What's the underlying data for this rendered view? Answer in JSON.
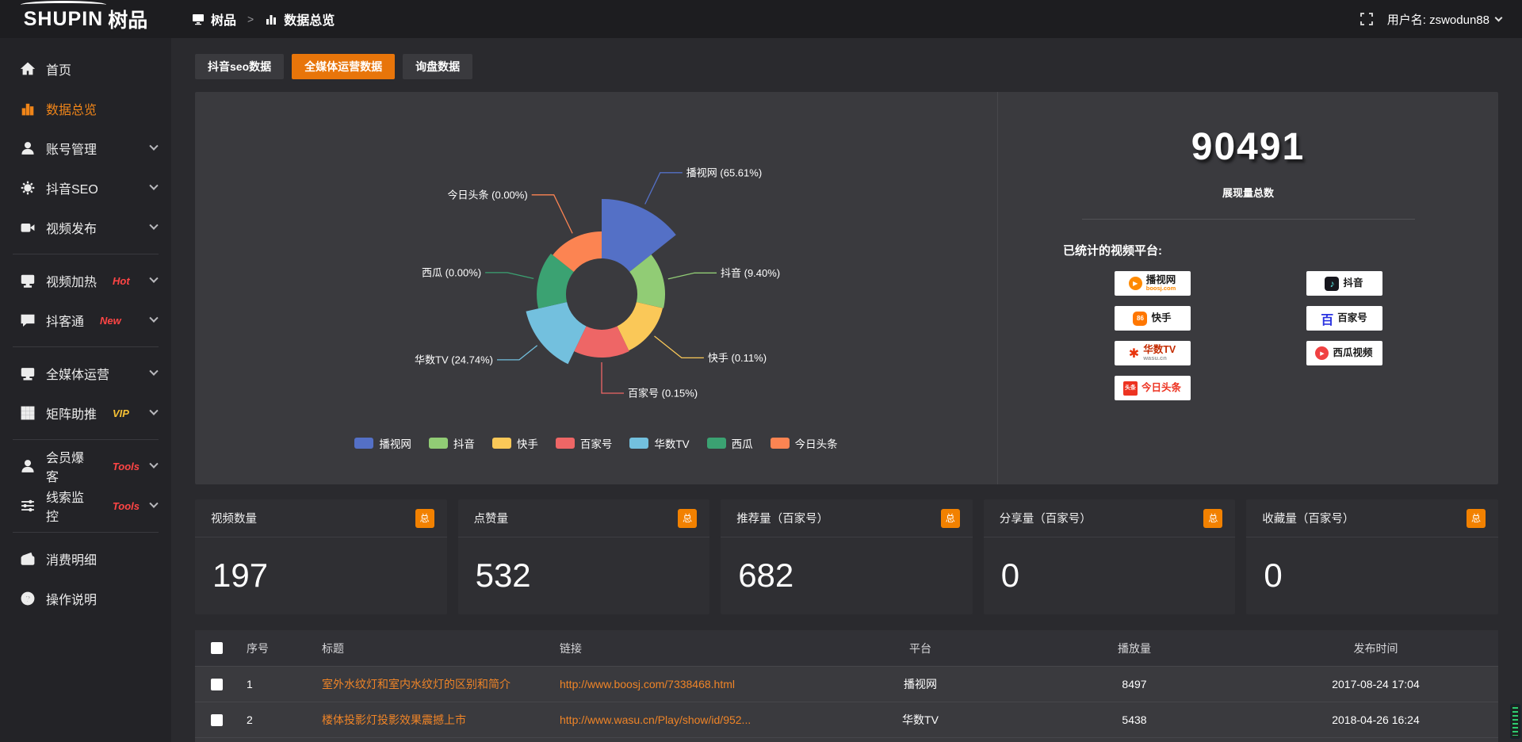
{
  "app": {
    "logo_en": "SHUPIN",
    "logo_cn": "树品"
  },
  "topbar": {
    "crumb1": "树品",
    "sep": ">",
    "crumb2": "数据总览",
    "username": "用户名: zswodun88"
  },
  "sidebar": {
    "items": [
      {
        "id": "home",
        "label": "首页",
        "icon": "home"
      },
      {
        "id": "data-overview",
        "label": "数据总览",
        "icon": "bar-chart",
        "active": true
      },
      {
        "id": "account-management",
        "label": "账号管理",
        "icon": "user",
        "chevron": true
      },
      {
        "id": "douyin-seo",
        "label": "抖音SEO",
        "icon": "gear",
        "chevron": true
      },
      {
        "id": "video-publish",
        "label": "视频发布",
        "icon": "video",
        "chevron": true
      },
      {
        "divider": true
      },
      {
        "id": "video-heating",
        "label": "视频加热",
        "icon": "display",
        "tag": "Hot",
        "tag_color": "#ff4545",
        "chevron": true
      },
      {
        "id": "douketong",
        "label": "抖客通",
        "icon": "chat",
        "tag": "New",
        "tag_color": "#ff4545",
        "chevron": true
      },
      {
        "divider": true
      },
      {
        "id": "omni-media",
        "label": "全媒体运营",
        "icon": "monitor",
        "chevron": true
      },
      {
        "id": "matrix-boost",
        "label": "矩阵助推",
        "icon": "grid",
        "tag": "VIP",
        "tag_color": "#f5c034",
        "chevron": true
      },
      {
        "divider": true
      },
      {
        "id": "member-baoke",
        "label": "会员爆客",
        "icon": "user",
        "tag": "Tools",
        "tag_color": "#ff4545",
        "chevron": true
      },
      {
        "id": "lead-monitor",
        "label": "线索监控",
        "icon": "sliders",
        "tag": "Tools",
        "tag_color": "#ff4545",
        "chevron": true
      },
      {
        "divider": true
      },
      {
        "id": "consume-detail",
        "label": "消费明细",
        "icon": "wallet"
      },
      {
        "id": "operation-guide",
        "label": "操作说明",
        "icon": "question"
      }
    ]
  },
  "tabs": [
    {
      "id": "douyin-seo-data",
      "label": "抖音seo数据",
      "active": false
    },
    {
      "id": "omni-media-data",
      "label": "全媒体运营数据",
      "active": true
    },
    {
      "id": "inquiry-data",
      "label": "询盘数据",
      "active": false
    }
  ],
  "chart_data": {
    "type": "pie",
    "subtype": "nightingale-rose",
    "unit": "percent",
    "inner_radius": 45,
    "items": [
      {
        "id": "boosj",
        "name": "播视网",
        "pct": 65.61,
        "color": "#5470c6",
        "radius": 120,
        "label_len": 50
      },
      {
        "id": "douyin",
        "name": "抖音",
        "pct": 9.4,
        "color": "#91cc75",
        "radius": 80,
        "label_len": 40
      },
      {
        "id": "kuaishou",
        "name": "快手",
        "pct": 0.11,
        "color": "#fac858",
        "radius": 79,
        "label_len": 50
      },
      {
        "id": "baijiahao",
        "name": "百家号",
        "pct": 0.15,
        "color": "#ee6666",
        "radius": 80,
        "label_len": 45
      },
      {
        "id": "wasu",
        "name": "华数TV",
        "pct": 24.74,
        "color": "#73c0de",
        "radius": 98,
        "label_len": 35
      },
      {
        "id": "xigua",
        "name": "西瓜",
        "pct": 0.0,
        "color": "#3ba272",
        "radius": 82,
        "label_len": 40
      },
      {
        "id": "toutiao",
        "name": "今日头条",
        "pct": 0.0,
        "color": "#fc8452",
        "radius": 79,
        "label_len": 60
      }
    ],
    "legend_position": "bottom"
  },
  "overview": {
    "total_value": "90491",
    "total_label": "展现量总数",
    "platforms_label": "已统计的视频平台:",
    "platforms": [
      {
        "id": "boosj",
        "name": "播视网",
        "sub": "boosj.com"
      },
      {
        "id": "douyin",
        "name": "抖音"
      },
      {
        "id": "kuaishou",
        "name": "快手"
      },
      {
        "id": "baijiahao",
        "name": "百家号"
      },
      {
        "id": "wasu",
        "name": "华数TV",
        "sub": "wasu.cn"
      },
      {
        "id": "xigua",
        "name": "西瓜视频"
      },
      {
        "id": "toutiao",
        "name": "今日头条",
        "icon_label": "头条"
      }
    ],
    "baijiahao_icon_label": "百"
  },
  "stat_cards": [
    {
      "title": "视频数量",
      "badge": "总",
      "value": "197"
    },
    {
      "title": "点赞量",
      "badge": "总",
      "value": "532"
    },
    {
      "title": "推荐量（百家号）",
      "badge": "总",
      "value": "682"
    },
    {
      "title": "分享量（百家号）",
      "badge": "总",
      "value": "0"
    },
    {
      "title": "收藏量（百家号）",
      "badge": "总",
      "value": "0"
    }
  ],
  "table": {
    "headers": [
      "序号",
      "标题",
      "链接",
      "平台",
      "播放量",
      "发布时间"
    ],
    "rows": [
      {
        "seq": "1",
        "title": "室外水纹灯和室内水纹灯的区别和简介",
        "link": "http://www.boosj.com/7338468.html",
        "platform": "播视网",
        "plays": "8497",
        "time": "2017-08-24 17:04"
      },
      {
        "seq": "2",
        "title": "楼体投影灯投影效果震撼上市",
        "link": "http://www.wasu.cn/Play/show/id/952...",
        "platform": "华数TV",
        "plays": "5438",
        "time": "2018-04-26 16:24"
      }
    ]
  }
}
